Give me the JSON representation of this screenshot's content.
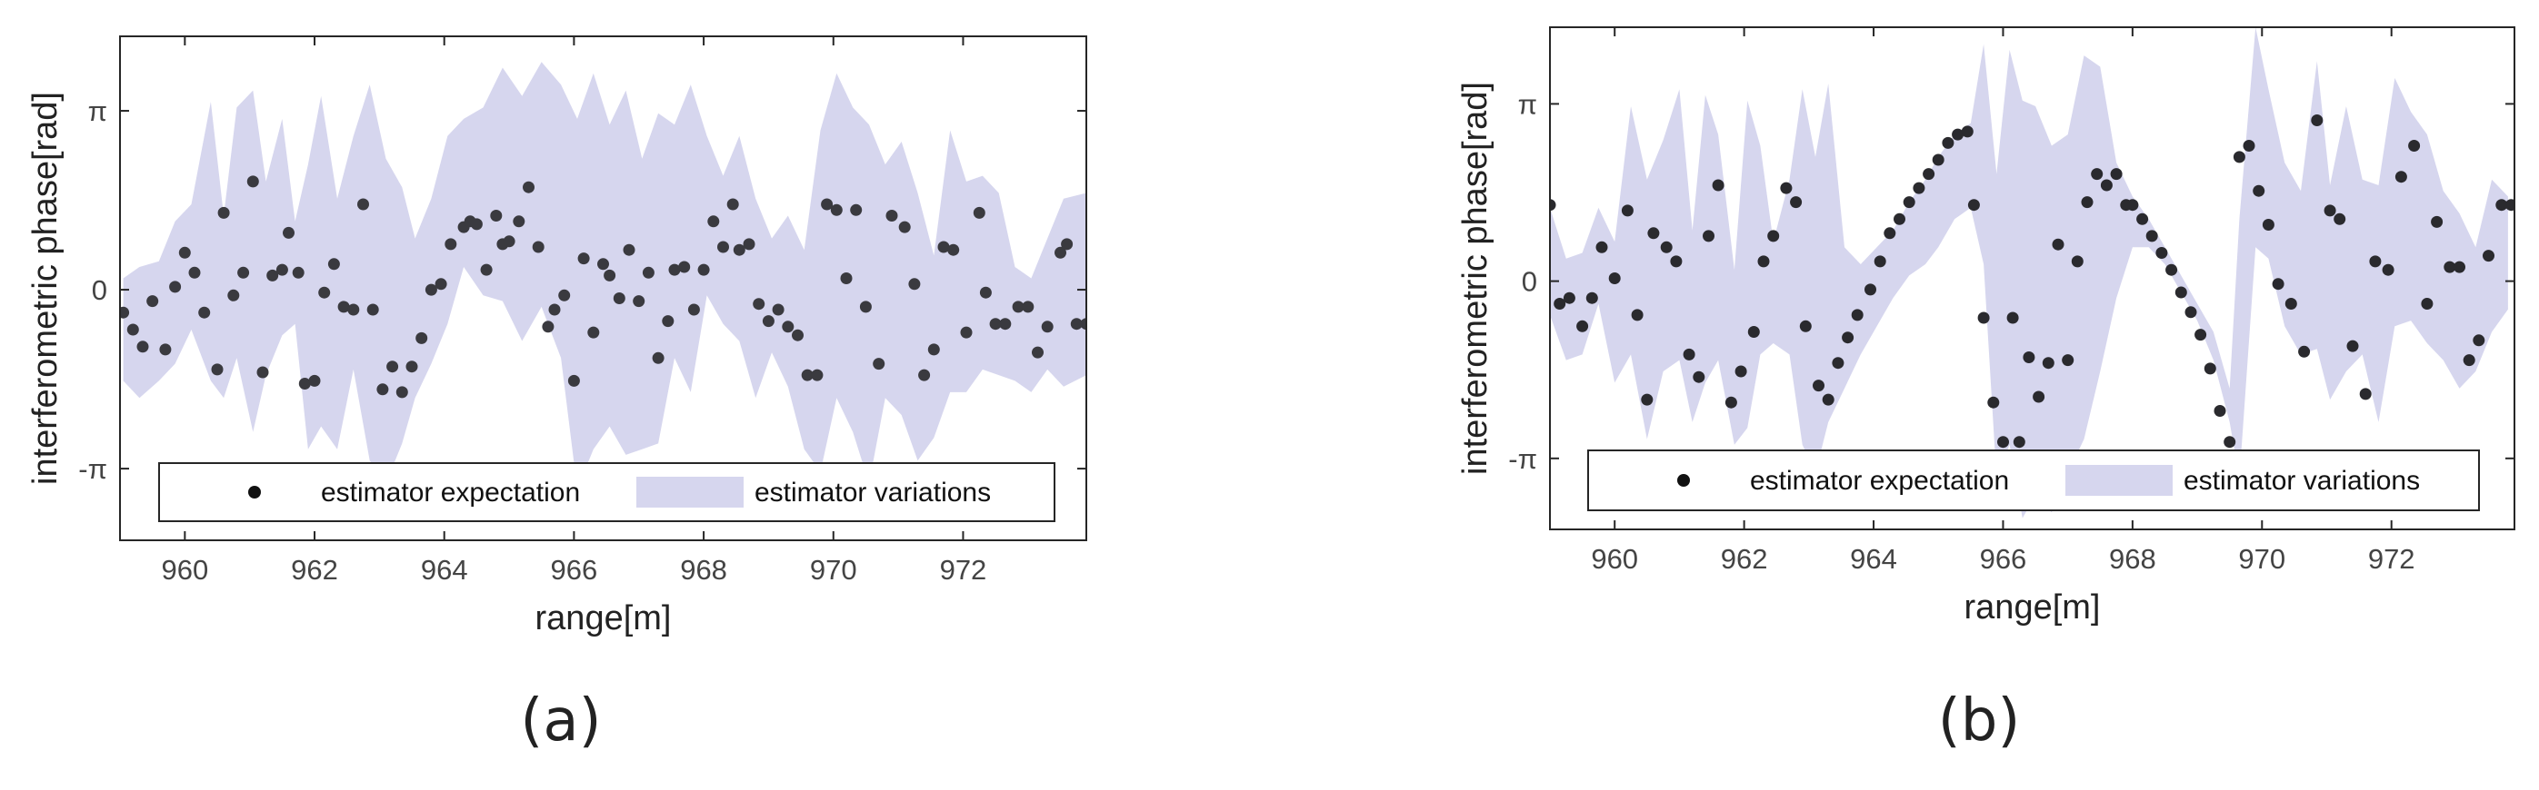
{
  "chart_data": [
    {
      "type": "scatter",
      "caption": "(a)",
      "xlabel": "range[m]",
      "ylabel": "interferometric phase[rad]",
      "xlim": [
        959.0,
        973.9
      ],
      "ylim": [
        -4.4,
        4.45
      ],
      "xticks": [
        960,
        962,
        964,
        966,
        968,
        970,
        972
      ],
      "yticks": [
        {
          "value": 3.14159,
          "label": "π"
        },
        {
          "value": 0,
          "label": "0"
        },
        {
          "value": -3.14159,
          "label": "-π"
        }
      ],
      "legend_location": "bottom",
      "series": [
        {
          "name": "estimator expectation",
          "kind": "points",
          "color": "#3a3a3f",
          "x": [
            959.05,
            959.2,
            959.35,
            959.5,
            959.7,
            959.85,
            960.0,
            960.15,
            960.3,
            960.5,
            960.6,
            960.75,
            960.9,
            961.05,
            961.2,
            961.35,
            961.5,
            961.6,
            961.75,
            961.85,
            962.0,
            962.15,
            962.3,
            962.45,
            962.6,
            962.75,
            962.9,
            963.05,
            963.2,
            963.35,
            963.5,
            963.65,
            963.8,
            963.95,
            964.1,
            964.3,
            964.4,
            964.5,
            964.65,
            964.8,
            964.9,
            965.0,
            965.15,
            965.3,
            965.45,
            965.6,
            965.7,
            965.85,
            966.0,
            966.15,
            966.3,
            966.45,
            966.55,
            966.7,
            966.85,
            967.0,
            967.15,
            967.3,
            967.45,
            967.55,
            967.7,
            967.85,
            968.0,
            968.15,
            968.3,
            968.45,
            968.55,
            968.7,
            968.85,
            969.0,
            969.15,
            969.3,
            969.45,
            969.6,
            969.75,
            969.9,
            970.05,
            970.2,
            970.35,
            970.5,
            970.7,
            970.9,
            971.1,
            971.25,
            971.4,
            971.55,
            971.7,
            971.85,
            972.05,
            972.25,
            972.35,
            972.5,
            972.65,
            972.85,
            973.0,
            973.15,
            973.3,
            973.5,
            973.6,
            973.75,
            973.9
          ],
          "y": [
            -0.4,
            -0.7,
            -1.0,
            -0.2,
            -1.05,
            0.05,
            0.65,
            0.3,
            -0.4,
            -1.4,
            1.35,
            -0.1,
            0.3,
            1.9,
            -1.45,
            0.25,
            0.35,
            1.0,
            0.3,
            -1.65,
            -1.6,
            -0.05,
            0.45,
            -0.3,
            -0.35,
            1.5,
            -0.35,
            -1.75,
            -1.35,
            -1.8,
            -1.35,
            -0.85,
            0.0,
            0.1,
            0.8,
            1.1,
            1.2,
            1.15,
            0.35,
            1.3,
            0.8,
            0.85,
            1.2,
            1.8,
            0.75,
            -0.65,
            -0.35,
            -0.1,
            -1.6,
            0.55,
            -0.75,
            0.45,
            0.25,
            -0.15,
            0.7,
            -0.2,
            0.3,
            -1.2,
            -0.55,
            0.35,
            0.4,
            -0.35,
            0.35,
            1.2,
            0.75,
            1.5,
            0.7,
            0.8,
            -0.25,
            -0.55,
            -0.35,
            -0.65,
            -0.8,
            -1.5,
            -1.5,
            1.5,
            1.4,
            0.2,
            1.4,
            -0.3,
            -1.3,
            1.3,
            1.1,
            0.1,
            -1.5,
            -1.05,
            0.75,
            0.7,
            -0.75,
            1.35,
            -0.05,
            -0.6,
            -0.6,
            -0.3,
            -0.3,
            -1.1,
            -0.65,
            0.65,
            0.8,
            -0.6,
            -0.6
          ]
        },
        {
          "name": "estimator variations",
          "kind": "band",
          "color": "#d6d6ee",
          "x": [
            959.05,
            959.3,
            959.6,
            959.85,
            960.1,
            960.4,
            960.6,
            960.8,
            961.05,
            961.25,
            961.5,
            961.7,
            961.9,
            962.1,
            962.35,
            962.6,
            962.85,
            963.1,
            963.35,
            963.55,
            963.8,
            964.05,
            964.3,
            964.6,
            964.9,
            965.2,
            965.5,
            965.8,
            966.05,
            966.3,
            966.55,
            966.8,
            967.05,
            967.3,
            967.55,
            967.8,
            968.05,
            968.3,
            968.55,
            968.8,
            969.05,
            969.3,
            969.55,
            969.8,
            970.05,
            970.3,
            970.55,
            970.8,
            971.05,
            971.3,
            971.55,
            971.8,
            972.05,
            972.3,
            972.55,
            972.8,
            973.05,
            973.3,
            973.55,
            973.9
          ],
          "upper": [
            0.2,
            0.4,
            0.5,
            1.2,
            1.5,
            3.3,
            1.3,
            3.2,
            3.5,
            1.9,
            3.0,
            1.2,
            2.2,
            3.4,
            1.6,
            2.7,
            3.6,
            2.3,
            1.8,
            0.9,
            1.6,
            2.7,
            3.0,
            3.2,
            3.9,
            3.4,
            4.0,
            3.6,
            3.0,
            3.8,
            2.9,
            3.5,
            2.3,
            3.1,
            2.9,
            3.6,
            2.7,
            2.0,
            2.7,
            1.6,
            0.9,
            1.3,
            0.7,
            2.8,
            3.8,
            3.2,
            2.9,
            2.2,
            2.6,
            1.7,
            0.6,
            2.8,
            1.9,
            2.0,
            1.7,
            0.4,
            0.2,
            0.9,
            1.6,
            1.7
          ],
          "lower": [
            -1.6,
            -1.9,
            -1.6,
            -1.3,
            -0.7,
            -1.6,
            -1.9,
            -1.2,
            -2.5,
            -1.5,
            -0.8,
            -0.6,
            -2.8,
            -2.4,
            -2.8,
            -1.4,
            -3.0,
            -3.4,
            -2.7,
            -1.9,
            -1.3,
            -0.6,
            0.4,
            -0.1,
            -0.2,
            -0.9,
            -0.3,
            -1.2,
            -3.5,
            -2.8,
            -2.4,
            -2.9,
            -2.8,
            -2.7,
            -1.2,
            -1.8,
            -0.1,
            -0.6,
            -0.9,
            -1.9,
            -1.1,
            -1.7,
            -2.8,
            -3.2,
            -1.9,
            -2.5,
            -3.4,
            -1.9,
            -2.2,
            -3.0,
            -2.6,
            -1.8,
            -1.8,
            -1.4,
            -1.5,
            -1.6,
            -1.8,
            -1.4,
            -1.7,
            -1.5
          ]
        }
      ]
    },
    {
      "type": "scatter",
      "caption": "(b)",
      "xlabel": "range[m]",
      "ylabel": "interferometric phase[rad]",
      "xlim": [
        959.0,
        973.9
      ],
      "ylim": [
        -4.4,
        4.5
      ],
      "xticks": [
        960,
        962,
        964,
        966,
        968,
        970,
        972
      ],
      "yticks": [
        {
          "value": 3.14159,
          "label": "π"
        },
        {
          "value": 0,
          "label": "0"
        },
        {
          "value": -3.14159,
          "label": "-π"
        }
      ],
      "legend_location": "bottom",
      "series": [
        {
          "name": "estimator expectation",
          "kind": "points",
          "color": "#2a2a2e",
          "x": [
            959.0,
            959.15,
            959.3,
            959.5,
            959.65,
            959.8,
            960.0,
            960.2,
            960.35,
            960.5,
            960.6,
            960.8,
            960.95,
            961.15,
            961.3,
            961.45,
            961.6,
            961.8,
            961.95,
            962.15,
            962.3,
            962.45,
            962.65,
            962.8,
            962.95,
            963.15,
            963.3,
            963.45,
            963.6,
            963.75,
            963.95,
            964.1,
            964.25,
            964.4,
            964.55,
            964.7,
            964.85,
            965.0,
            965.15,
            965.3,
            965.45,
            965.55,
            965.7,
            965.85,
            966.0,
            966.15,
            966.25,
            966.4,
            966.55,
            966.7,
            966.85,
            967.0,
            967.15,
            967.3,
            967.45,
            967.6,
            967.75,
            967.9,
            968.0,
            968.15,
            968.3,
            968.45,
            968.6,
            968.75,
            968.9,
            969.05,
            969.2,
            969.35,
            969.5,
            969.65,
            969.8,
            969.95,
            970.1,
            970.25,
            970.45,
            970.65,
            970.85,
            971.05,
            971.2,
            971.4,
            971.6,
            971.75,
            971.95,
            972.15,
            972.35,
            972.55,
            972.7,
            972.9,
            973.05,
            973.2,
            973.35,
            973.5,
            973.7,
            973.85
          ],
          "y": [
            1.35,
            -0.4,
            -0.3,
            -0.8,
            -0.3,
            0.6,
            0.05,
            1.25,
            -0.6,
            -2.1,
            0.85,
            0.6,
            0.35,
            -1.3,
            -1.7,
            0.8,
            1.7,
            -2.15,
            -1.6,
            -0.9,
            0.35,
            0.8,
            1.65,
            1.4,
            -0.8,
            -1.85,
            -2.1,
            -1.45,
            -1.0,
            -0.6,
            -0.15,
            0.35,
            0.85,
            1.1,
            1.4,
            1.65,
            1.9,
            2.15,
            2.45,
            2.6,
            2.65,
            1.35,
            -0.65,
            -2.15,
            -2.85,
            -0.65,
            -2.85,
            -1.35,
            -2.05,
            -1.45,
            0.65,
            -1.4,
            0.35,
            1.4,
            1.9,
            1.7,
            1.9,
            1.35,
            1.35,
            1.1,
            0.8,
            0.5,
            0.2,
            -0.2,
            -0.55,
            -0.95,
            -1.55,
            -2.3,
            -2.85,
            2.2,
            2.4,
            1.6,
            1.0,
            -0.05,
            -0.4,
            -1.25,
            2.85,
            1.25,
            1.1,
            -1.15,
            -2.0,
            0.35,
            0.2,
            1.85,
            2.4,
            -0.4,
            1.05,
            0.25,
            0.25,
            -1.4,
            -1.05,
            0.45,
            1.35,
            1.35
          ]
        },
        {
          "name": "estimator variations",
          "kind": "band",
          "color": "#d6d6ee",
          "x": [
            959.0,
            959.25,
            959.5,
            959.75,
            960.0,
            960.25,
            960.5,
            960.75,
            961.0,
            961.2,
            961.4,
            961.6,
            961.85,
            962.05,
            962.25,
            962.45,
            962.7,
            962.9,
            963.1,
            963.3,
            963.55,
            963.8,
            964.05,
            964.3,
            964.55,
            964.8,
            965.0,
            965.25,
            965.5,
            965.7,
            965.9,
            966.1,
            966.3,
            966.5,
            966.75,
            967.0,
            967.25,
            967.5,
            967.75,
            968.0,
            968.25,
            968.5,
            968.75,
            969.0,
            969.25,
            969.5,
            969.65,
            969.9,
            970.1,
            970.35,
            970.6,
            970.85,
            971.05,
            971.3,
            971.55,
            971.8,
            972.05,
            972.3,
            972.55,
            972.8,
            973.05,
            973.3,
            973.55,
            973.8
          ],
          "upper": [
            1.3,
            0.4,
            0.5,
            1.3,
            0.7,
            3.1,
            1.8,
            2.5,
            3.4,
            0.9,
            3.3,
            2.6,
            0.2,
            3.2,
            2.4,
            0.7,
            1.8,
            3.4,
            2.2,
            3.5,
            0.6,
            0.3,
            0.6,
            0.9,
            1.4,
            1.8,
            2.2,
            2.6,
            2.8,
            4.2,
            1.9,
            4.1,
            3.2,
            3.1,
            2.4,
            2.6,
            4.0,
            3.8,
            2.1,
            1.5,
            1.1,
            0.6,
            0.1,
            -0.4,
            -0.9,
            -1.9,
            1.1,
            4.5,
            3.4,
            2.1,
            1.6,
            3.9,
            1.7,
            3.1,
            1.8,
            1.7,
            3.6,
            3.0,
            2.6,
            1.6,
            1.2,
            0.6,
            1.8,
            1.5
          ],
          "lower": [
            -0.6,
            -1.4,
            -1.3,
            -0.4,
            -1.8,
            -1.3,
            -2.8,
            -1.6,
            -1.4,
            -2.5,
            -1.8,
            -1.4,
            -2.9,
            -2.6,
            -1.3,
            -1.1,
            -1.3,
            -2.9,
            -3.4,
            -2.5,
            -1.9,
            -1.3,
            -0.8,
            -0.3,
            0.1,
            0.3,
            0.6,
            1.1,
            1.3,
            0.3,
            -3.5,
            -2.9,
            -4.2,
            -3.8,
            -4.1,
            -3.4,
            -2.8,
            -1.6,
            -0.3,
            0.6,
            0.6,
            0.3,
            -0.2,
            -0.7,
            -1.4,
            -2.5,
            -3.5,
            0.6,
            0.4,
            -0.8,
            -1.3,
            -1.2,
            -2.1,
            -1.6,
            -1.3,
            -2.5,
            -0.8,
            -0.7,
            -1.1,
            -1.4,
            -1.9,
            -1.6,
            -0.9,
            -0.5
          ]
        }
      ]
    }
  ]
}
